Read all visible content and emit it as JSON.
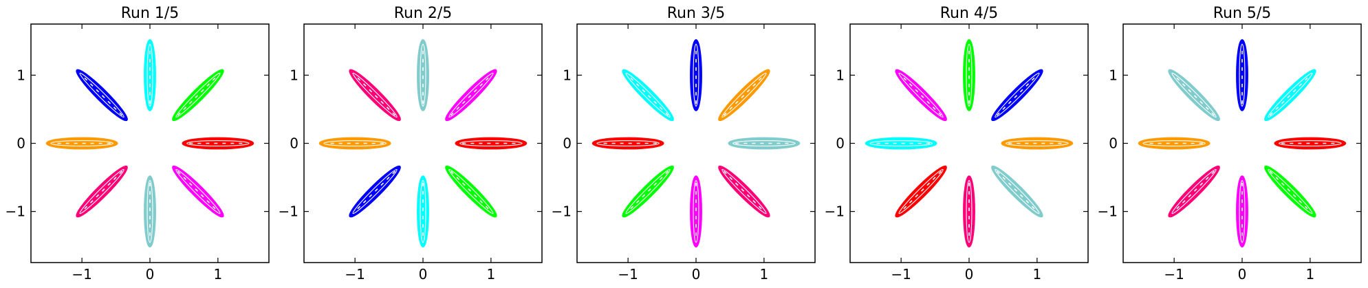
{
  "chart_data": [
    {
      "type": "scatter",
      "title": "Run 1/5",
      "xlabel": "",
      "ylabel": "",
      "xlim": [
        -1.75,
        1.75
      ],
      "ylim": [
        -1.75,
        1.75
      ],
      "xticks": [
        "−1",
        "0",
        "1"
      ],
      "yticks": [
        "−1",
        "0",
        "1"
      ],
      "xtick_values": [
        -1,
        0,
        1
      ],
      "ytick_values": [
        -1,
        0,
        1
      ],
      "grid": false,
      "legend": "none",
      "series": [
        {
          "color": "#ff0000",
          "values": {
            "cx": 1.0,
            "cy": 0.0,
            "angle_deg": 0
          }
        },
        {
          "color": "#00ff00",
          "values": {
            "cx": 0.707,
            "cy": 0.707,
            "angle_deg": 45
          }
        },
        {
          "color": "#00ffff",
          "values": {
            "cx": 0.0,
            "cy": 1.0,
            "angle_deg": 90
          }
        },
        {
          "color": "#0000ff",
          "values": {
            "cx": -0.707,
            "cy": 0.707,
            "angle_deg": 135
          }
        },
        {
          "color": "#ff9900",
          "values": {
            "cx": -1.0,
            "cy": 0.0,
            "angle_deg": 180
          }
        },
        {
          "color": "#ff0077",
          "values": {
            "cx": -0.707,
            "cy": -0.707,
            "angle_deg": 225
          }
        },
        {
          "color": "#80cccc",
          "values": {
            "cx": 0.0,
            "cy": -1.0,
            "angle_deg": 270
          }
        },
        {
          "color": "#ff00ff",
          "values": {
            "cx": 0.707,
            "cy": -0.707,
            "angle_deg": 315
          }
        }
      ]
    },
    {
      "type": "scatter",
      "title": "Run 2/5",
      "xlabel": "",
      "ylabel": "",
      "xlim": [
        -1.75,
        1.75
      ],
      "ylim": [
        -1.75,
        1.75
      ],
      "xticks": [
        "−1",
        "0",
        "1"
      ],
      "yticks": [
        "−1",
        "0",
        "1"
      ],
      "xtick_values": [
        -1,
        0,
        1
      ],
      "ytick_values": [
        -1,
        0,
        1
      ],
      "grid": false,
      "legend": "none",
      "series": [
        {
          "color": "#ff0000",
          "values": {
            "cx": 1.0,
            "cy": 0.0,
            "angle_deg": 0
          }
        },
        {
          "color": "#ff00ff",
          "values": {
            "cx": 0.707,
            "cy": 0.707,
            "angle_deg": 45
          }
        },
        {
          "color": "#80cccc",
          "values": {
            "cx": 0.0,
            "cy": 1.0,
            "angle_deg": 90
          }
        },
        {
          "color": "#ff0077",
          "values": {
            "cx": -0.707,
            "cy": 0.707,
            "angle_deg": 135
          }
        },
        {
          "color": "#ff9900",
          "values": {
            "cx": -1.0,
            "cy": 0.0,
            "angle_deg": 180
          }
        },
        {
          "color": "#0000ff",
          "values": {
            "cx": -0.707,
            "cy": -0.707,
            "angle_deg": 225
          }
        },
        {
          "color": "#00ffff",
          "values": {
            "cx": 0.0,
            "cy": -1.0,
            "angle_deg": 270
          }
        },
        {
          "color": "#00ff00",
          "values": {
            "cx": 0.707,
            "cy": -0.707,
            "angle_deg": 315
          }
        }
      ]
    },
    {
      "type": "scatter",
      "title": "Run 3/5",
      "xlabel": "",
      "ylabel": "",
      "xlim": [
        -1.75,
        1.75
      ],
      "ylim": [
        -1.75,
        1.75
      ],
      "xticks": [
        "−1",
        "0",
        "1"
      ],
      "yticks": [
        "−1",
        "0",
        "1"
      ],
      "xtick_values": [
        -1,
        0,
        1
      ],
      "ytick_values": [
        -1,
        0,
        1
      ],
      "grid": false,
      "legend": "none",
      "series": [
        {
          "color": "#80cccc",
          "values": {
            "cx": 1.0,
            "cy": 0.0,
            "angle_deg": 0
          }
        },
        {
          "color": "#ff9900",
          "values": {
            "cx": 0.707,
            "cy": 0.707,
            "angle_deg": 45
          }
        },
        {
          "color": "#0000ff",
          "values": {
            "cx": 0.0,
            "cy": 1.0,
            "angle_deg": 90
          }
        },
        {
          "color": "#00ffff",
          "values": {
            "cx": -0.707,
            "cy": 0.707,
            "angle_deg": 135
          }
        },
        {
          "color": "#ff0000",
          "values": {
            "cx": -1.0,
            "cy": 0.0,
            "angle_deg": 180
          }
        },
        {
          "color": "#00ff00",
          "values": {
            "cx": -0.707,
            "cy": -0.707,
            "angle_deg": 225
          }
        },
        {
          "color": "#ff00ff",
          "values": {
            "cx": 0.0,
            "cy": -1.0,
            "angle_deg": 270
          }
        },
        {
          "color": "#ff0077",
          "values": {
            "cx": 0.707,
            "cy": -0.707,
            "angle_deg": 315
          }
        }
      ]
    },
    {
      "type": "scatter",
      "title": "Run 4/5",
      "xlabel": "",
      "ylabel": "",
      "xlim": [
        -1.75,
        1.75
      ],
      "ylim": [
        -1.75,
        1.75
      ],
      "xticks": [
        "−1",
        "0",
        "1"
      ],
      "yticks": [
        "−1",
        "0",
        "1"
      ],
      "xtick_values": [
        -1,
        0,
        1
      ],
      "ytick_values": [
        -1,
        0,
        1
      ],
      "grid": false,
      "legend": "none",
      "series": [
        {
          "color": "#ff9900",
          "values": {
            "cx": 1.0,
            "cy": 0.0,
            "angle_deg": 0
          }
        },
        {
          "color": "#0000ff",
          "values": {
            "cx": 0.707,
            "cy": 0.707,
            "angle_deg": 45
          }
        },
        {
          "color": "#00ff00",
          "values": {
            "cx": 0.0,
            "cy": 1.0,
            "angle_deg": 90
          }
        },
        {
          "color": "#ff00ff",
          "values": {
            "cx": -0.707,
            "cy": 0.707,
            "angle_deg": 135
          }
        },
        {
          "color": "#00ffff",
          "values": {
            "cx": -1.0,
            "cy": 0.0,
            "angle_deg": 180
          }
        },
        {
          "color": "#ff0000",
          "values": {
            "cx": -0.707,
            "cy": -0.707,
            "angle_deg": 225
          }
        },
        {
          "color": "#ff0077",
          "values": {
            "cx": 0.0,
            "cy": -1.0,
            "angle_deg": 270
          }
        },
        {
          "color": "#80cccc",
          "values": {
            "cx": 0.707,
            "cy": -0.707,
            "angle_deg": 315
          }
        }
      ]
    },
    {
      "type": "scatter",
      "title": "Run 5/5",
      "xlabel": "",
      "ylabel": "",
      "xlim": [
        -1.75,
        1.75
      ],
      "ylim": [
        -1.75,
        1.75
      ],
      "xticks": [
        "−1",
        "0",
        "1"
      ],
      "yticks": [
        "−1",
        "0",
        "1"
      ],
      "xtick_values": [
        -1,
        0,
        1
      ],
      "ytick_values": [
        -1,
        0,
        1
      ],
      "grid": false,
      "legend": "none",
      "series": [
        {
          "color": "#ff0000",
          "values": {
            "cx": 1.0,
            "cy": 0.0,
            "angle_deg": 0
          }
        },
        {
          "color": "#00ffff",
          "values": {
            "cx": 0.707,
            "cy": 0.707,
            "angle_deg": 45
          }
        },
        {
          "color": "#0000ff",
          "values": {
            "cx": 0.0,
            "cy": 1.0,
            "angle_deg": 90
          }
        },
        {
          "color": "#80cccc",
          "values": {
            "cx": -0.707,
            "cy": 0.707,
            "angle_deg": 135
          }
        },
        {
          "color": "#ff9900",
          "values": {
            "cx": -1.0,
            "cy": 0.0,
            "angle_deg": 180
          }
        },
        {
          "color": "#ff0077",
          "values": {
            "cx": -0.707,
            "cy": -0.707,
            "angle_deg": 225
          }
        },
        {
          "color": "#ff00ff",
          "values": {
            "cx": 0.0,
            "cy": -1.0,
            "angle_deg": 270
          }
        },
        {
          "color": "#00ff00",
          "values": {
            "cx": 0.707,
            "cy": -0.707,
            "angle_deg": 315
          }
        }
      ]
    }
  ]
}
